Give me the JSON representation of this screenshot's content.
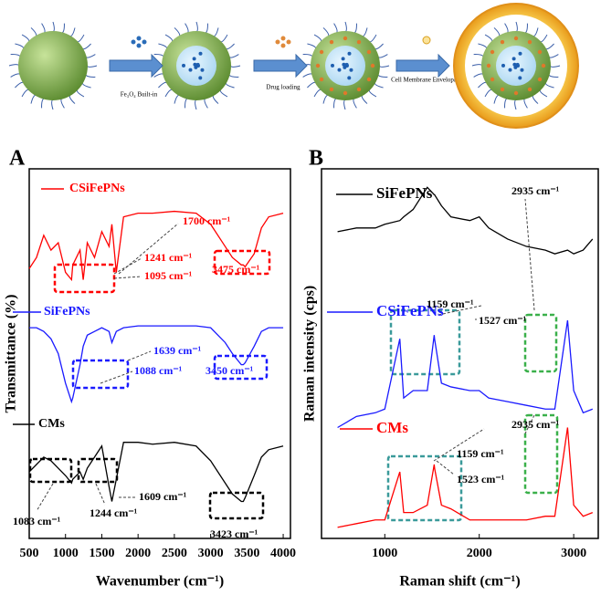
{
  "schematic": {
    "steps": [
      "Fe₃O₄ Built-in",
      "Drug loading",
      "Cell Membrane Enveloping"
    ]
  },
  "chart_data": [
    {
      "type": "line",
      "label": "A",
      "xlabel": "Wavenumber (cm⁻¹)",
      "ylabel": "Transmittance (%)",
      "x": [
        500,
        600,
        700,
        800,
        900,
        1000,
        1083,
        1100,
        1200,
        1244,
        1300,
        1400,
        1500,
        1600,
        1639,
        1700,
        1800,
        2000,
        2200,
        2500,
        2800,
        3000,
        3200,
        3300,
        3423,
        3450,
        3475,
        3600,
        3700,
        3800,
        4000
      ],
      "series": [
        {
          "name": "CSiFePNs",
          "color": "#ff0000",
          "values": [
            73,
            76,
            82,
            78,
            80,
            72,
            70,
            74,
            78,
            70,
            80,
            76,
            83,
            79,
            85,
            72,
            87,
            88,
            88,
            88.5,
            88,
            85,
            79,
            76,
            74,
            74,
            73.5,
            77,
            84,
            87,
            88
          ]
        },
        {
          "name": "SiFePNs",
          "color": "#1a1aff",
          "values": [
            57,
            57,
            56,
            54,
            50,
            42,
            37,
            38,
            47,
            52,
            55,
            56,
            57,
            56,
            53,
            56,
            57,
            57.5,
            57.5,
            57.5,
            57.5,
            57,
            53,
            50,
            47,
            47,
            47.5,
            52,
            56,
            57,
            57
          ]
        },
        {
          "name": "CMs",
          "color": "#000000",
          "values": [
            18,
            20,
            22,
            21,
            19,
            17,
            15,
            16,
            18,
            16,
            19,
            22,
            25,
            14,
            10,
            16,
            26,
            26,
            25.5,
            26,
            25,
            21,
            15,
            12,
            10,
            10,
            11,
            17,
            22,
            24,
            25
          ]
        }
      ],
      "xlim": [
        500,
        4100
      ],
      "ylim": [
        0,
        100
      ],
      "xticks": [
        500,
        1000,
        1500,
        2000,
        2500,
        3000,
        3500,
        4000
      ],
      "annotations": [
        "1700 cm⁻¹",
        "1241 cm⁻¹",
        "1095 cm⁻¹",
        "3475 cm⁻¹",
        "1639 cm⁻¹",
        "1088 cm⁻¹",
        "3450 cm⁻¹",
        "1083 cm⁻¹",
        "1244 cm⁻¹",
        "1609 cm⁻¹",
        "3423 cm⁻¹"
      ]
    },
    {
      "type": "line",
      "label": "B",
      "xlabel": "Raman shift (cm⁻¹)",
      "ylabel": "Raman intensity (cps)",
      "x": [
        500,
        700,
        900,
        1000,
        1159,
        1200,
        1300,
        1450,
        1523,
        1527,
        1600,
        1700,
        1900,
        2000,
        2100,
        2300,
        2500,
        2700,
        2800,
        2935,
        3000,
        3100,
        3200
      ],
      "series": [
        {
          "name": "SiFePNs",
          "color": "#000000",
          "values": [
            83,
            84,
            84,
            85,
            86,
            87,
            89,
            95,
            93,
            93,
            90,
            87,
            86,
            87,
            84,
            81,
            79,
            78,
            77,
            78,
            77,
            78,
            81
          ]
        },
        {
          "name": "CSiFePNs",
          "color": "#1a1aff",
          "values": [
            30,
            33,
            34,
            35,
            54,
            38,
            40,
            40,
            55,
            54,
            42,
            41,
            40,
            40,
            38,
            37,
            36,
            35,
            35,
            59,
            40,
            34,
            35
          ]
        },
        {
          "name": "CMs",
          "color": "#ff0000",
          "values": [
            3,
            4,
            5,
            5,
            18,
            7,
            7,
            9,
            20,
            19,
            9,
            8,
            5,
            5,
            5,
            5,
            5,
            6,
            6,
            30,
            9,
            6,
            7
          ]
        }
      ],
      "xlim": [
        330,
        3260
      ],
      "ylim": [
        0,
        100
      ],
      "xticks": [
        1000,
        2000,
        3000
      ],
      "annotations": [
        "2935 cm⁻¹",
        "1159 cm⁻¹",
        "1527 cm⁻¹",
        "2935 cm⁻¹",
        "1159 cm⁻¹",
        "1523 cm⁻¹"
      ]
    }
  ]
}
